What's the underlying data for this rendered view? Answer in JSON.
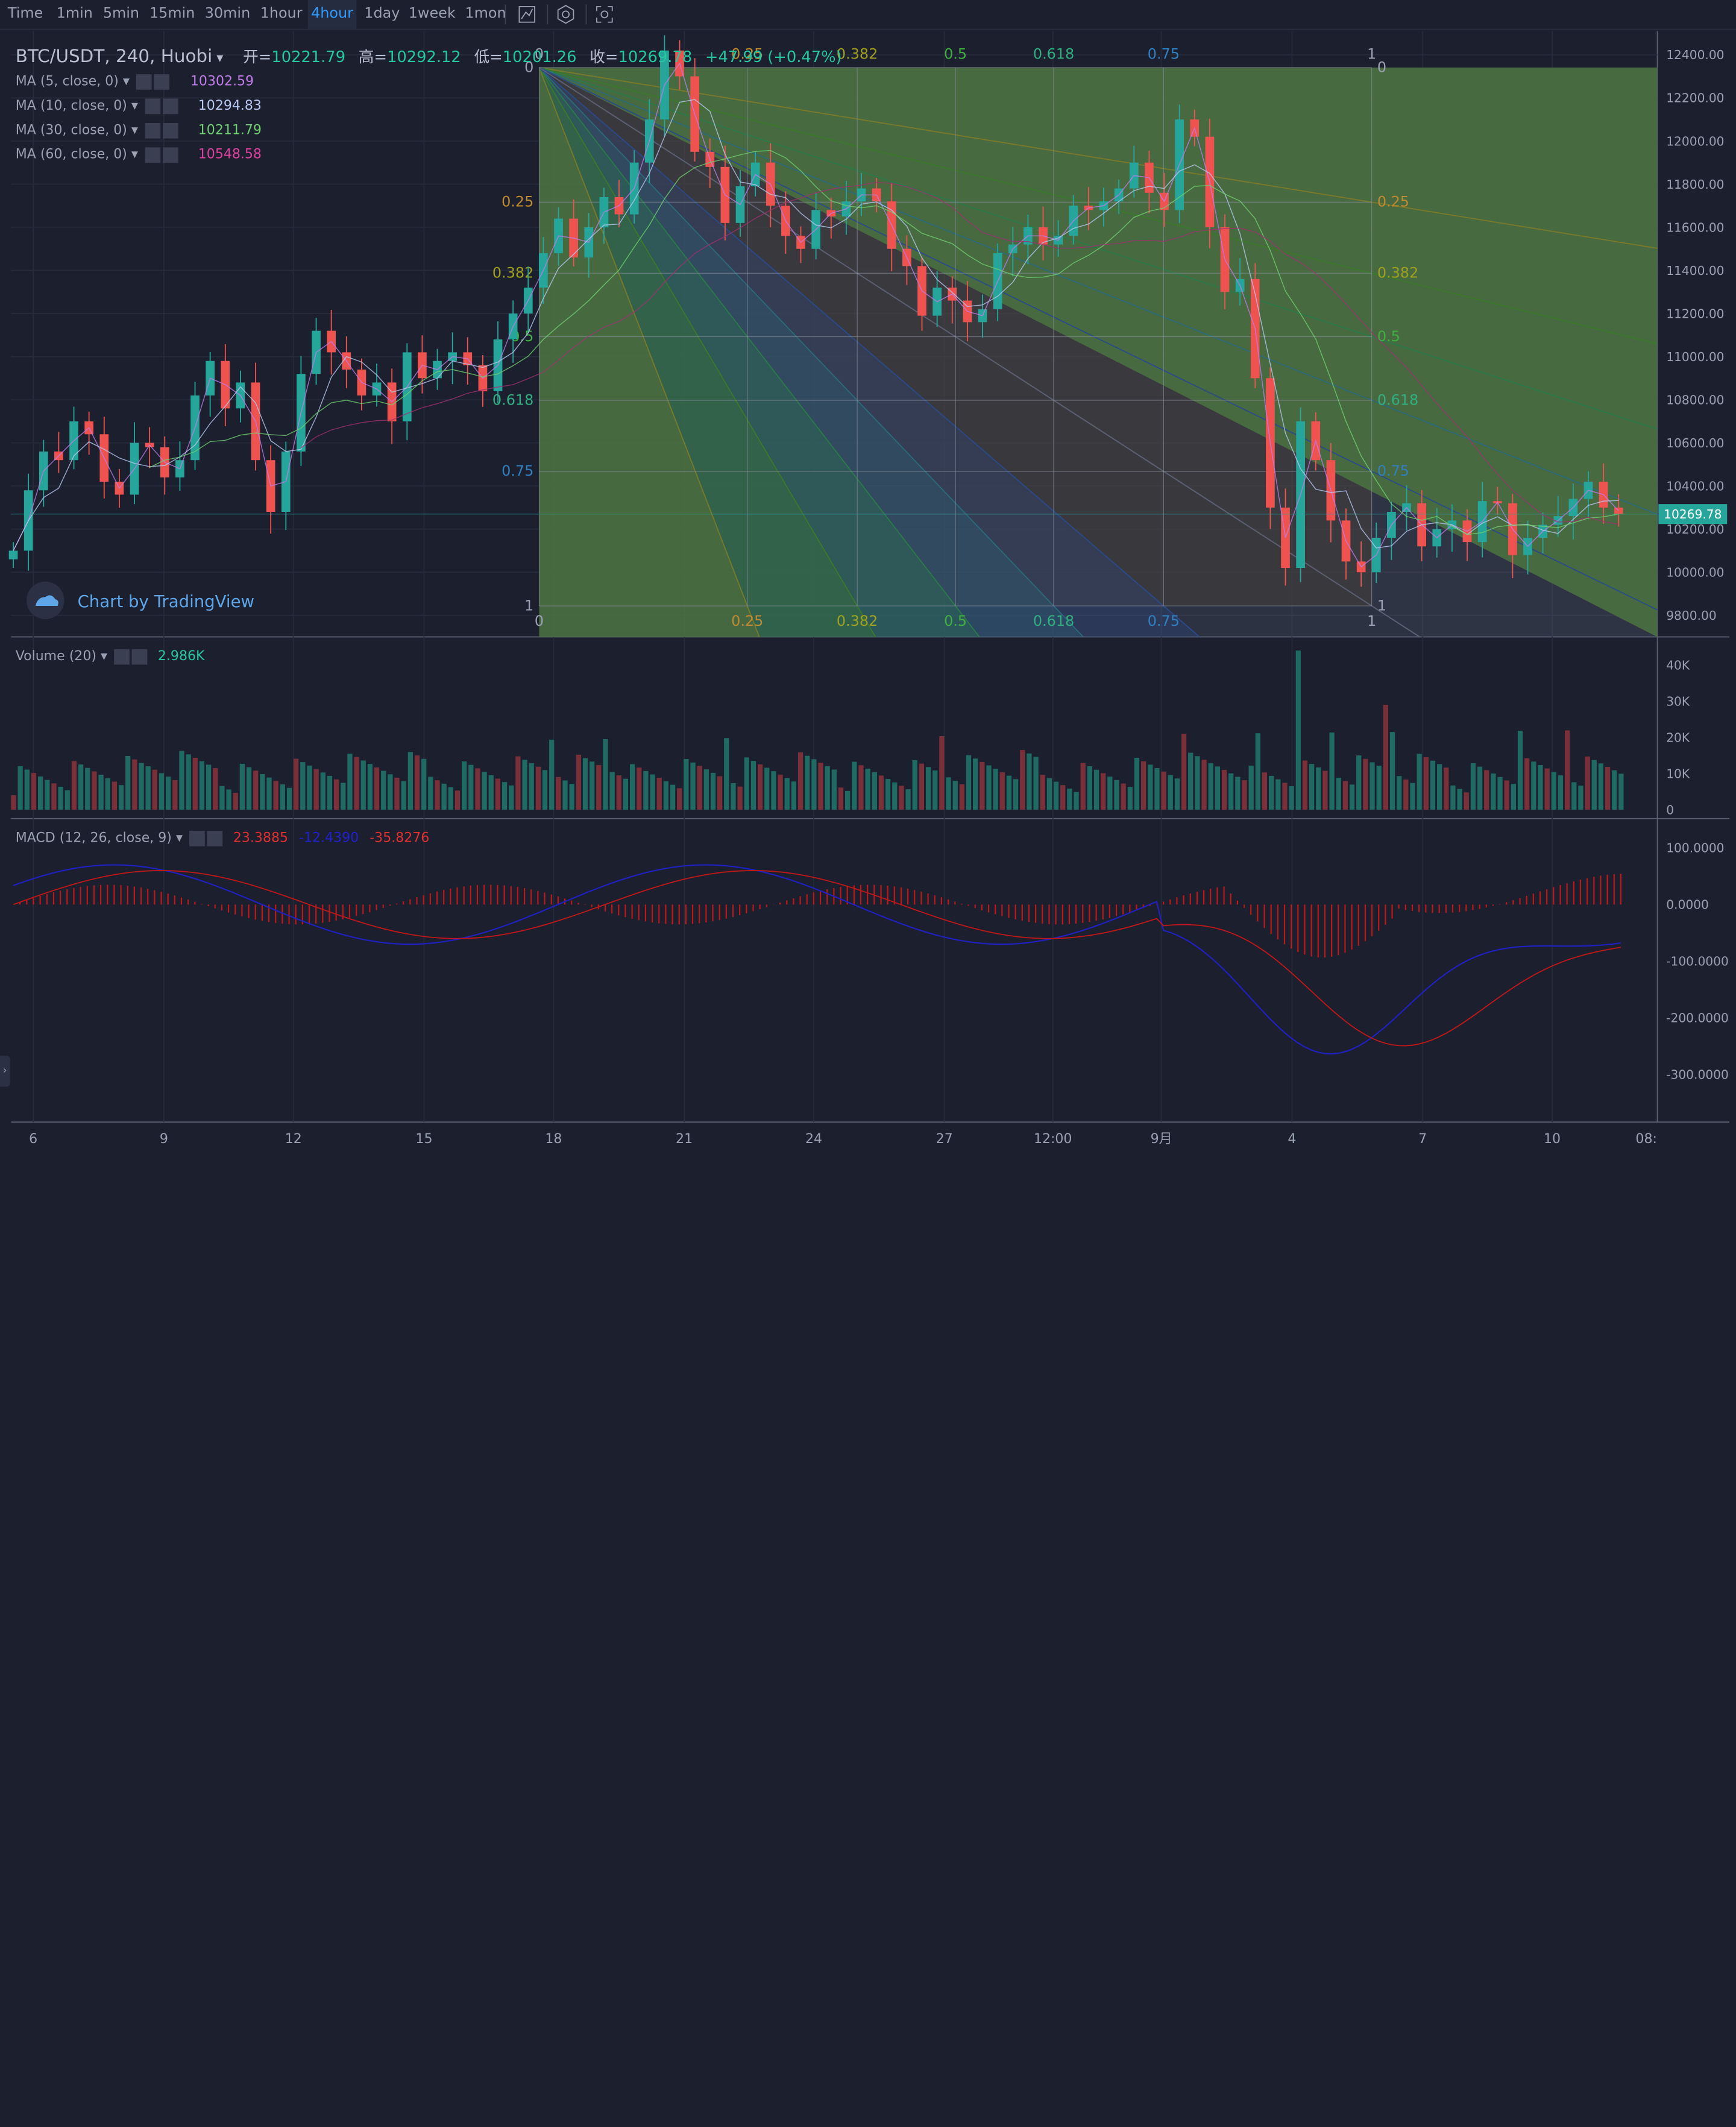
{
  "toolbar": {
    "intervals": [
      "Time",
      "1min",
      "5min",
      "15min",
      "30min",
      "1hour",
      "4hour",
      "1day",
      "1week",
      "1mon"
    ],
    "active": "4hour",
    "icons": [
      "chart-type-icon",
      "settings-hex-icon",
      "screenshot-icon"
    ]
  },
  "header": {
    "symbol": "BTC/USDT, 240, Huobi",
    "open_label": "开=",
    "open": "10221.79",
    "high_label": "高=",
    "high": "10292.12",
    "low_label": "低=",
    "low": "10201.26",
    "close_label": "收=",
    "close": "10269.78",
    "change": "+47.99 (+0.47%)"
  },
  "indicators": [
    {
      "label": "MA (5, close, 0)",
      "value": "10302.59",
      "color": "#c07ce8"
    },
    {
      "label": "MA (10, close, 0)",
      "value": "10294.83",
      "color": "#b8c8f0"
    },
    {
      "label": "MA (30, close, 0)",
      "value": "10211.79",
      "color": "#6fd06f"
    },
    {
      "label": "MA (60, close, 0)",
      "value": "10548.58",
      "color": "#e040a0"
    }
  ],
  "volume": {
    "label": "Volume (20)",
    "value": "2.986K"
  },
  "macd": {
    "label": "MACD (12, 26, close, 9)",
    "hist": "23.3885",
    "macd": "-12.4390",
    "signal": "-35.8276"
  },
  "branding": {
    "text": "Chart by TradingView"
  },
  "price_axis": [
    "12400.00",
    "12200.00",
    "12000.00",
    "11800.00",
    "11600.00",
    "11400.00",
    "11200.00",
    "11000.00",
    "10800.00",
    "10600.00",
    "10400.00",
    "10200.00",
    "10000.00",
    "9800.00"
  ],
  "last_price": "10269.78",
  "volume_axis": [
    "40K",
    "30K",
    "20K",
    "10K",
    "0"
  ],
  "macd_axis": [
    "100.0000",
    "0.0000",
    "-100.0000",
    "-200.0000",
    "-300.0000"
  ],
  "time_axis": [
    "6",
    "9",
    "12",
    "15",
    "18",
    "21",
    "24",
    "27",
    "12:00",
    "9月",
    "4",
    "7",
    "10",
    "08:"
  ],
  "fib_levels": [
    "0",
    "0.25",
    "0.382",
    "0.5",
    "0.618",
    "0.75",
    "1"
  ],
  "colors": {
    "up": "#26a69a",
    "down": "#ef5350",
    "bg": "#1b1f2e",
    "grid": "#262b3b",
    "accent": "#2e9cff"
  },
  "chart_data": {
    "type": "candlestick",
    "symbol": "BTC/USDT",
    "interval": "240",
    "ylim": [
      9700,
      12500
    ],
    "yticks": [
      12400,
      12200,
      12000,
      11800,
      11600,
      11400,
      11200,
      11000,
      10800,
      10600,
      10400,
      10200,
      10000,
      9800
    ],
    "x_ticks": [
      "6",
      "9",
      "12",
      "15",
      "18",
      "21",
      "24",
      "27",
      "12:00",
      "9月",
      "4",
      "7",
      "10",
      "08:"
    ],
    "close_series": [
      10100,
      10380,
      10560,
      10520,
      10700,
      10640,
      10420,
      10360,
      10600,
      10580,
      10440,
      10520,
      10820,
      10980,
      10760,
      10880,
      10520,
      10280,
      10560,
      10920,
      11120,
      11020,
      10940,
      10820,
      10880,
      10700,
      11020,
      10900,
      10980,
      11020,
      10960,
      10840,
      11080,
      11200,
      11320,
      11480,
      11640,
      11460,
      11600,
      11740,
      11660,
      11900,
      12100,
      12420,
      12300,
      11950,
      11880,
      11620,
      11790,
      11900,
      11700,
      11560,
      11500,
      11680,
      11650,
      11720,
      11780,
      11720,
      11500,
      11420,
      11190,
      11320,
      11260,
      11160,
      11220,
      11480,
      11520,
      11600,
      11520,
      11560,
      11700,
      11680,
      11720,
      11780,
      11900,
      11760,
      11680,
      12100,
      12020,
      11600,
      11300,
      11360,
      10900,
      10300,
      10020,
      10700,
      10520,
      10240,
      10050,
      10000,
      10160,
      10280,
      10320,
      10120,
      10200,
      10240,
      10140,
      10330,
      10320,
      10080,
      10160,
      10220,
      10260,
      10340,
      10420,
      10300,
      10270
    ],
    "series": [
      {
        "name": "MA (5, close, 0)",
        "last": 10302.59
      },
      {
        "name": "MA (10, close, 0)",
        "last": 10294.83
      },
      {
        "name": "MA (30, close, 0)",
        "last": 10211.79
      },
      {
        "name": "MA (60, close, 0)",
        "last": 10548.58
      }
    ],
    "volume": {
      "ylim": [
        0,
        45000
      ],
      "peak": 44000
    },
    "macd": {
      "ylim": [
        -380,
        140
      ],
      "hist_last": 23.3885,
      "macd_last": -12.439,
      "signal_last": -35.8276
    },
    "grid": true
  }
}
